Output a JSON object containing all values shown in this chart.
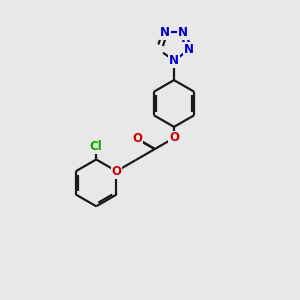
{
  "bg_color": "#e8e8e8",
  "bond_color": "#1a1a1a",
  "N_color": "#0000cc",
  "O_color": "#cc0000",
  "Cl_color": "#00aa00",
  "line_width": 1.6,
  "figsize": [
    3.0,
    3.0
  ],
  "dpi": 100,
  "xlim": [
    0,
    10
  ],
  "ylim": [
    0,
    10
  ]
}
